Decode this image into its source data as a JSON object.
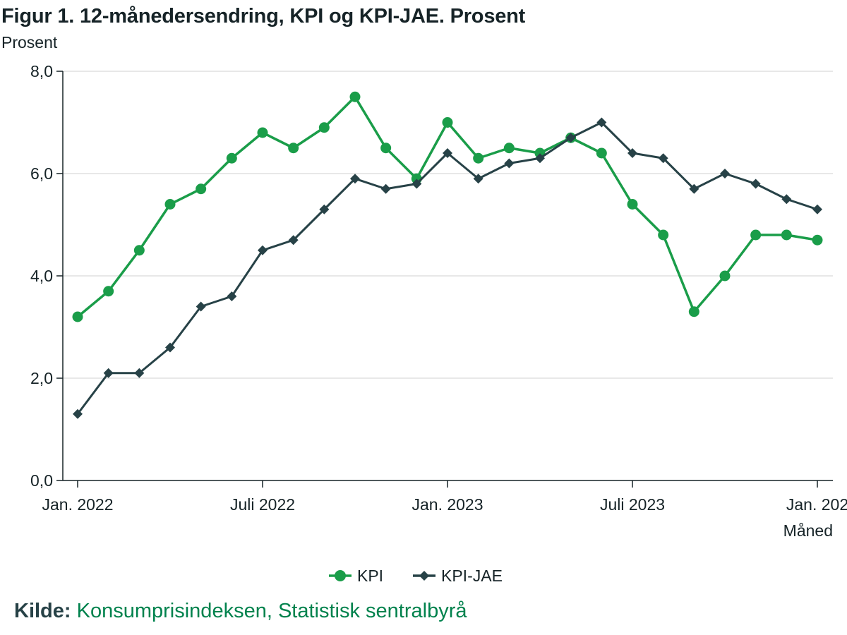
{
  "title": "Figur 1. 12-månedersendring, KPI og KPI-JAE. Prosent",
  "source": {
    "label": "Kilde:",
    "text": "Konsumprisindeksen, Statistisk sentralbyrå"
  },
  "colors": {
    "kpi": "#1a9d49",
    "kpi_jae": "#274247",
    "axis": "#162327",
    "grid": "#d9d9d9"
  },
  "chart_data": {
    "type": "line",
    "title": "Figur 1. 12-månedersendring, KPI og KPI-JAE. Prosent",
    "ylabel": "Prosent",
    "xlabel": "Måned",
    "ylim": [
      0,
      8
    ],
    "yticks": [
      "0,0",
      "2,0",
      "4,0",
      "6,0",
      "8,0"
    ],
    "ytick_values": [
      0,
      2,
      4,
      6,
      8
    ],
    "grid": true,
    "legend_position": "bottom",
    "x": [
      "2022-01",
      "2022-02",
      "2022-03",
      "2022-04",
      "2022-05",
      "2022-06",
      "2022-07",
      "2022-08",
      "2022-09",
      "2022-10",
      "2022-11",
      "2022-12",
      "2023-01",
      "2023-02",
      "2023-03",
      "2023-04",
      "2023-05",
      "2023-06",
      "2023-07",
      "2023-08",
      "2023-09",
      "2023-10",
      "2023-11",
      "2023-12",
      "2024-01"
    ],
    "xtick_labels": [
      {
        "label": "Jan. 2022",
        "index": 0
      },
      {
        "label": "Juli 2022",
        "index": 6
      },
      {
        "label": "Jan. 2023",
        "index": 12
      },
      {
        "label": "Juli 2023",
        "index": 18
      },
      {
        "label": "Jan. 202",
        "index": 24
      }
    ],
    "series": [
      {
        "name": "KPI",
        "marker": "circle",
        "values": [
          3.2,
          3.7,
          4.5,
          5.4,
          5.7,
          6.3,
          6.8,
          6.5,
          6.9,
          7.5,
          6.5,
          5.9,
          7.0,
          6.3,
          6.5,
          6.4,
          6.7,
          6.4,
          5.4,
          4.8,
          3.3,
          4.0,
          4.8,
          4.8,
          4.7
        ]
      },
      {
        "name": "KPI-JAE",
        "marker": "diamond",
        "values": [
          1.3,
          2.1,
          2.1,
          2.6,
          3.4,
          3.6,
          4.5,
          4.7,
          5.3,
          5.9,
          5.7,
          5.8,
          6.4,
          5.9,
          6.2,
          6.3,
          6.7,
          7.0,
          6.4,
          6.3,
          5.7,
          6.0,
          5.8,
          5.5,
          5.3
        ]
      }
    ]
  }
}
